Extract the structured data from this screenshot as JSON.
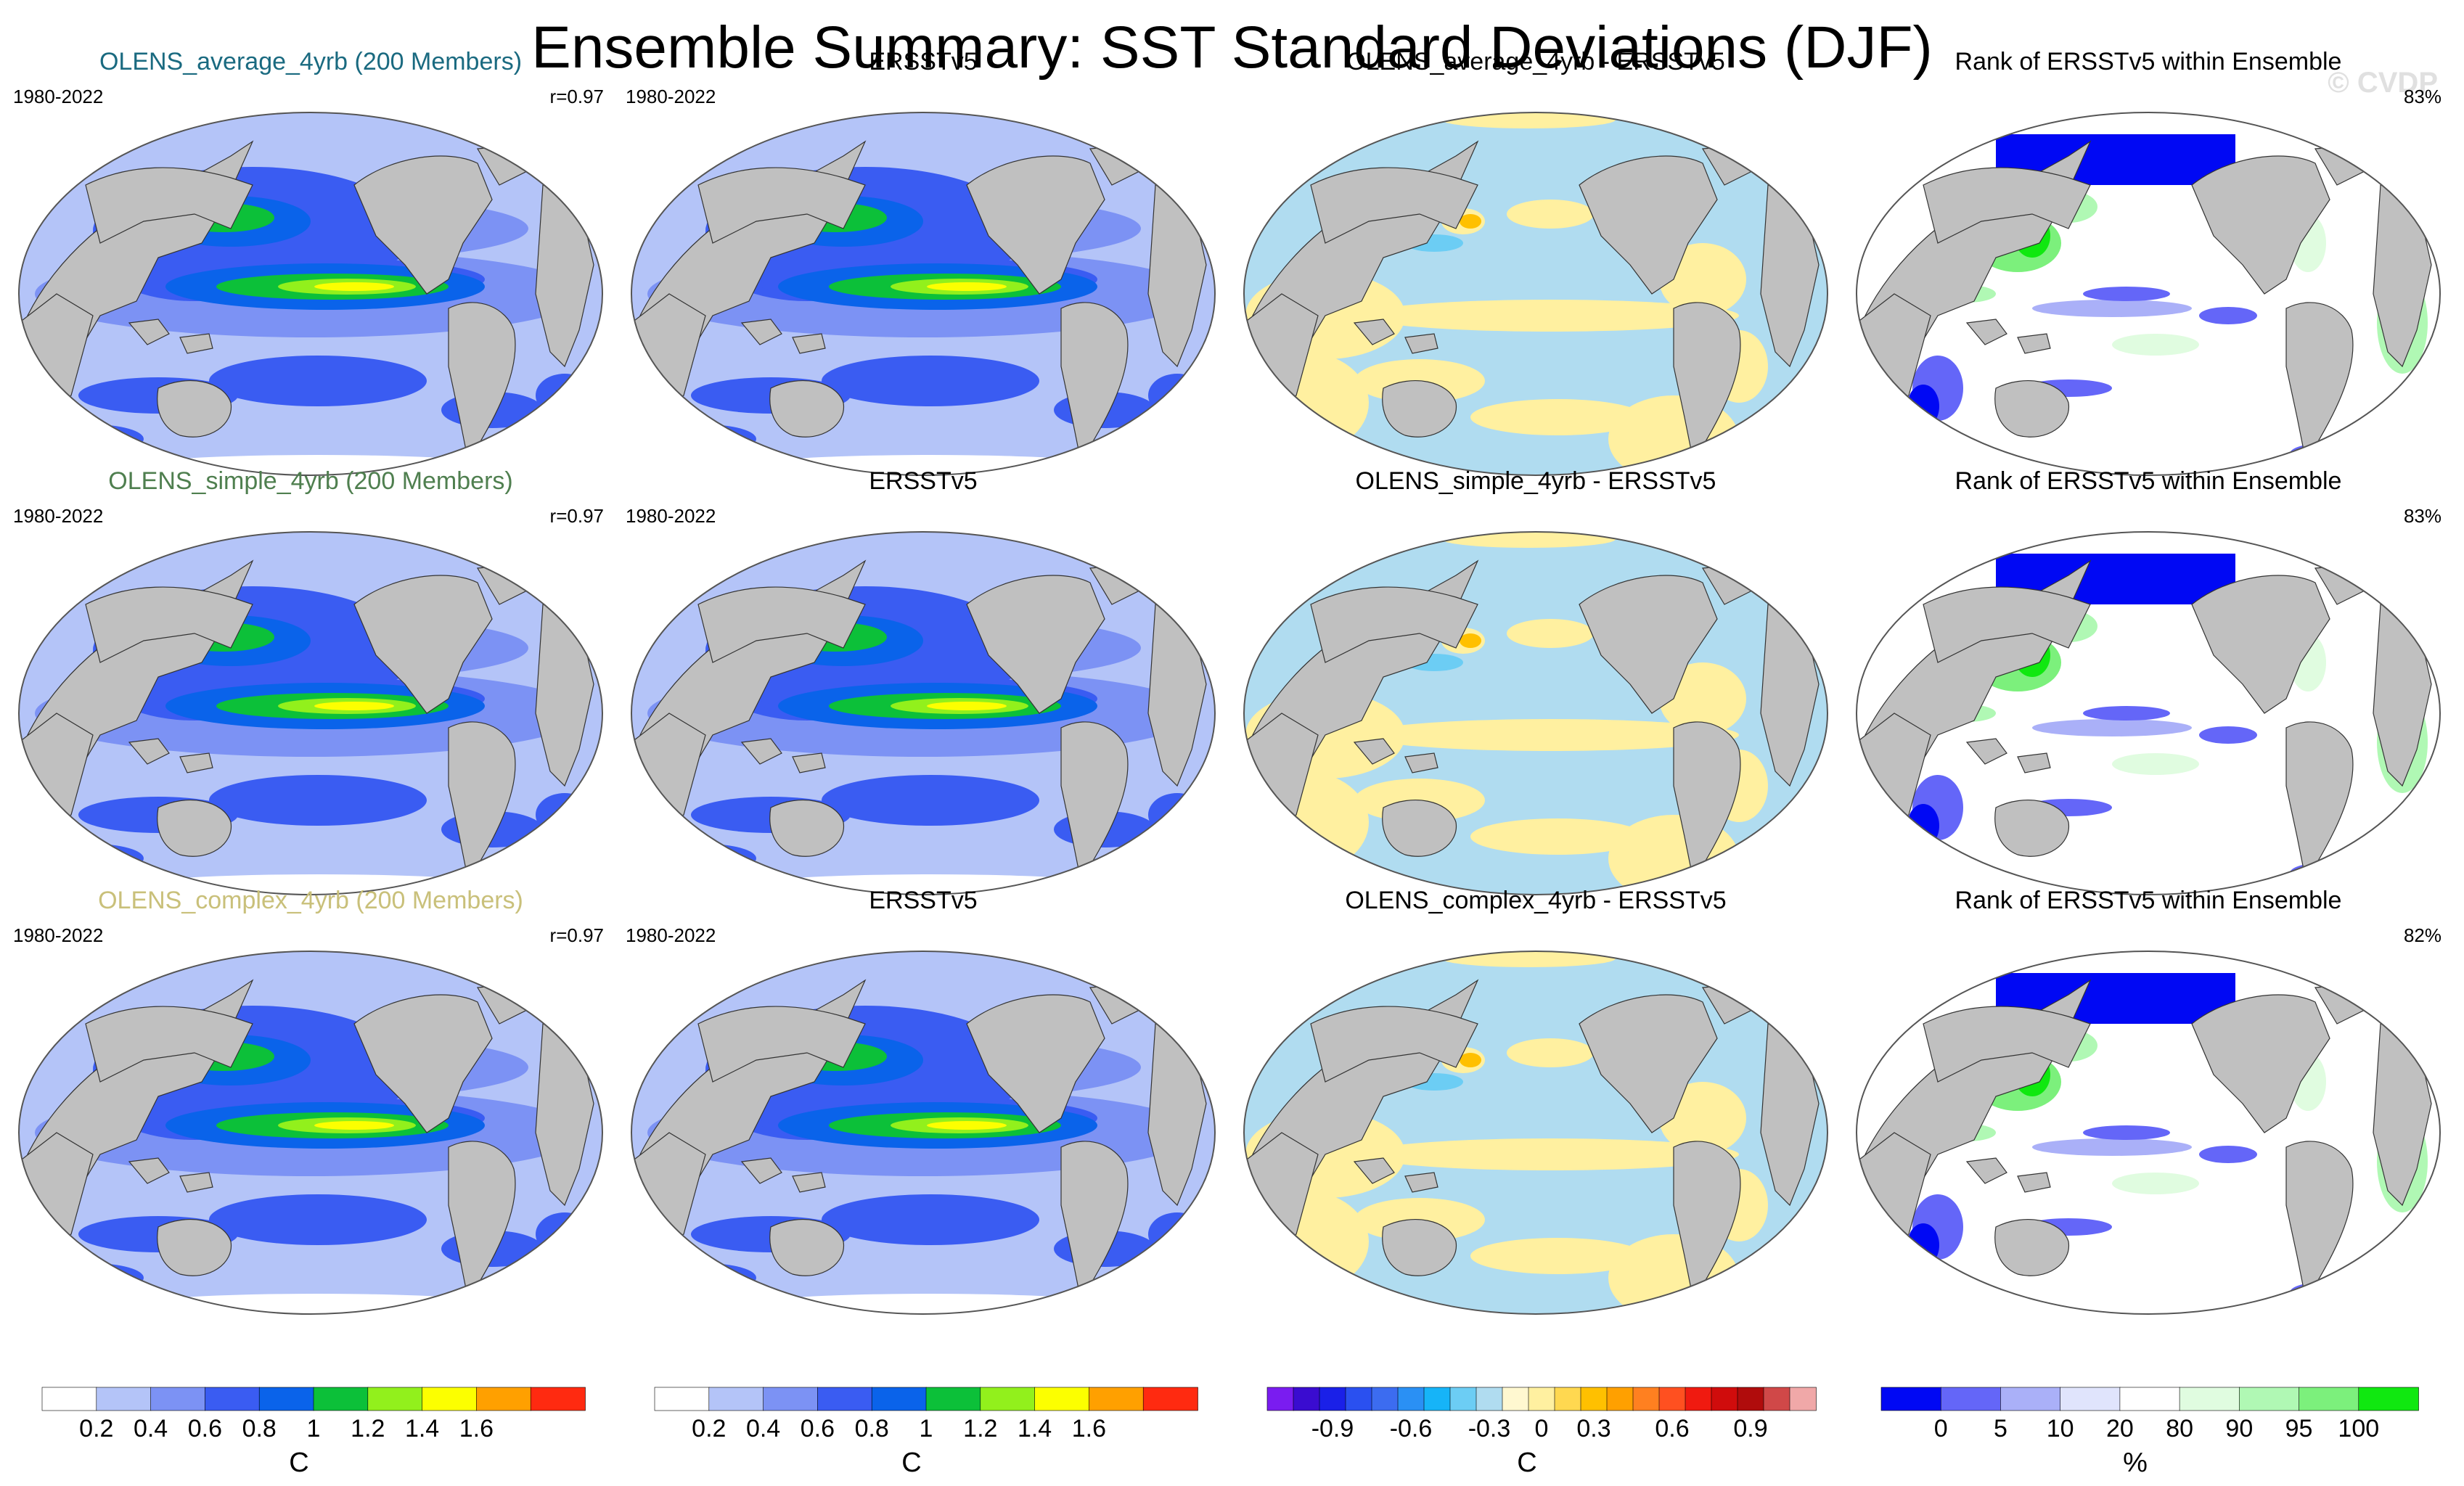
{
  "title": "Ensemble Summary: SST Standard Deviations (DJF)",
  "watermark": "© CVDP",
  "colors": {
    "model_average": "#1a6a80",
    "model_simple": "#4f7f4f",
    "model_complex": "#c9c07a",
    "land": "#c0c0c0",
    "ocean_rank_bg": "#ffffff"
  },
  "rows": [
    {
      "panels": [
        {
          "kind": "std",
          "title": "OLENS_average_4yrb (200 Members)",
          "title_color_key": "model_average",
          "period": "1980-2022",
          "corner": "r=0.97"
        },
        {
          "kind": "std",
          "title": "ERSSTv5",
          "period": "1980-2022"
        },
        {
          "kind": "diff",
          "title": "OLENS_average_4yrb - ERSSTv5"
        },
        {
          "kind": "rank",
          "title": "Rank of ERSSTv5 within Ensemble",
          "corner": "83%"
        }
      ]
    },
    {
      "panels": [
        {
          "kind": "std",
          "title": "OLENS_simple_4yrb (200 Members)",
          "title_color_key": "model_simple",
          "period": "1980-2022",
          "corner": "r=0.97"
        },
        {
          "kind": "std",
          "title": "ERSSTv5",
          "period": "1980-2022"
        },
        {
          "kind": "diff",
          "title": "OLENS_simple_4yrb - ERSSTv5"
        },
        {
          "kind": "rank",
          "title": "Rank of ERSSTv5 within Ensemble",
          "corner": "83%"
        }
      ]
    },
    {
      "panels": [
        {
          "kind": "std",
          "title": "OLENS_complex_4yrb (200 Members)",
          "title_color_key": "model_complex",
          "period": "1980-2022",
          "corner": "r=0.97"
        },
        {
          "kind": "std",
          "title": "ERSSTv5",
          "period": "1980-2022"
        },
        {
          "kind": "diff",
          "title": "OLENS_complex_4yrb - ERSSTv5"
        },
        {
          "kind": "rank",
          "title": "Rank of ERSSTv5 within Ensemble",
          "corner": "82%"
        }
      ]
    }
  ],
  "chart_data": {
    "type": "heatmap",
    "projection": "global equal-area map (ellipse)",
    "colorbars": [
      {
        "name": "std-1",
        "unit": "C",
        "colors": [
          "#ffffff",
          "#b4c4f8",
          "#7c92f4",
          "#3a5cf2",
          "#0a63ea",
          "#0cc039",
          "#92f01c",
          "#fcff00",
          "#ffa000",
          "#ff2a10"
        ],
        "ticks": [
          "0.2",
          "0.4",
          "0.6",
          "0.8",
          "1",
          "1.2",
          "1.4",
          "1.6"
        ]
      },
      {
        "name": "std-2",
        "unit": "C",
        "colors": [
          "#ffffff",
          "#b4c4f8",
          "#7c92f4",
          "#3a5cf2",
          "#0a63ea",
          "#0cc039",
          "#92f01c",
          "#fcff00",
          "#ffa000",
          "#ff2a10"
        ],
        "ticks": [
          "0.2",
          "0.4",
          "0.6",
          "0.8",
          "1",
          "1.2",
          "1.4",
          "1.6"
        ]
      },
      {
        "name": "diff",
        "unit": "C",
        "colors": [
          "#7a1cf0",
          "#3a0cd0",
          "#1a20e8",
          "#2a50f0",
          "#3c6cf0",
          "#2a90f4",
          "#16b4f8",
          "#6ccdf4",
          "#b0dcf0",
          "#fff8d0",
          "#fff0a0",
          "#ffd850",
          "#ffc000",
          "#ffa000",
          "#ff8020",
          "#ff5020",
          "#f01a10",
          "#d00c0c",
          "#b00c0c",
          "#d04848",
          "#f0a8a8"
        ],
        "ticks": [
          "-0.9",
          "-0.6",
          "-0.3",
          "0",
          "0.3",
          "0.6",
          "0.9"
        ]
      },
      {
        "name": "rank",
        "unit": "%",
        "colors": [
          "#0008f4",
          "#6466f8",
          "#aab0f8",
          "#e0e4fc",
          "#ffffff",
          "#e0fce0",
          "#b0f8b4",
          "#7cf07c",
          "#10e810"
        ],
        "ticks": [
          "0",
          "5",
          "10",
          "20",
          "80",
          "90",
          "95",
          "100"
        ]
      }
    ]
  }
}
